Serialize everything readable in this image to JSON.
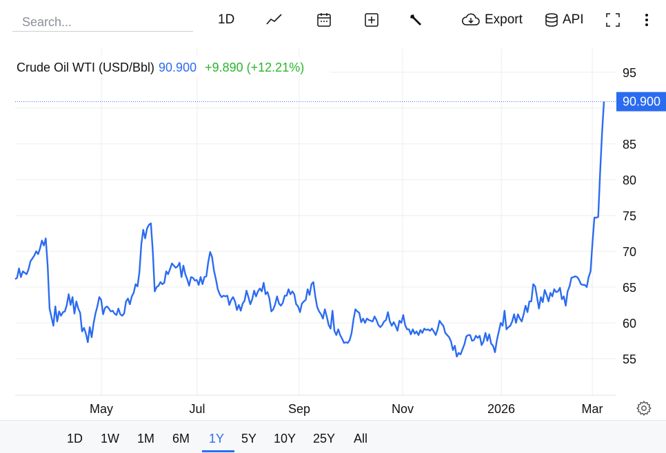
{
  "search": {
    "placeholder": "Search..."
  },
  "toolbar": {
    "interval_label": "1D",
    "export_label": "Export",
    "api_label": "API"
  },
  "chart_data": {
    "type": "line",
    "title": "Crude Oil WTI (USD/Bbl)",
    "last_value": "90.900",
    "change": "+9.890 (+12.21%)",
    "price_tag": "90.900",
    "x_tick_labels": [
      "May",
      "Jul",
      "Sep",
      "Nov",
      "2026",
      "Mar"
    ],
    "y_tick_labels": [
      "55",
      "60",
      "65",
      "70",
      "75",
      "80",
      "85",
      "95"
    ],
    "ylim": [
      50,
      98
    ],
    "grid": true,
    "line_color": "#2b6bf0",
    "series": [
      {
        "values": [
          66.1,
          66.3,
          67.6,
          66.4,
          67.2,
          67.0,
          66.8,
          67.5,
          68.6,
          69.0,
          69.4,
          70.0,
          69.6,
          70.4,
          71.5,
          70.8,
          71.8,
          68.0,
          62.0,
          60.8,
          59.6,
          62.3,
          60.2,
          61.6,
          61.0,
          61.5,
          61.6,
          62.5,
          64.0,
          62.5,
          63.6,
          61.3,
          63.0,
          62.0,
          61.4,
          58.8,
          59.3,
          58.5,
          57.3,
          59.4,
          58.0,
          59.9,
          61.3,
          62.3,
          63.6,
          63.2,
          61.2,
          62.1,
          62.3,
          62.0,
          61.6,
          61.7,
          61.3,
          61.1,
          62.0,
          61.2,
          61.0,
          61.3,
          63.0,
          63.4,
          62.6,
          63.7,
          64.2,
          65.4,
          65.1,
          67.1,
          71.0,
          73.0,
          71.8,
          73.2,
          73.7,
          73.9,
          70.0,
          64.4,
          65.0,
          65.2,
          65.7,
          65.4,
          65.6,
          67.2,
          66.8,
          67.5,
          68.3,
          68.0,
          67.7,
          67.9,
          68.4,
          66.4,
          68.0,
          66.8,
          66.1,
          65.2,
          66.4,
          66.3,
          65.9,
          66.0,
          65.3,
          66.4,
          65.4,
          66.4,
          66.5,
          68.5,
          69.9,
          69.2,
          67.3,
          66.1,
          64.7,
          64.0,
          63.6,
          63.8,
          63.7,
          63.8,
          62.5,
          63.2,
          63.6,
          63.0,
          61.8,
          62.5,
          61.7,
          62.7,
          63.1,
          64.5,
          63.6,
          62.6,
          63.3,
          64.5,
          63.7,
          64.4,
          64.8,
          64.4,
          65.6,
          64.0,
          64.3,
          63.4,
          61.6,
          61.9,
          62.6,
          63.7,
          62.7,
          62.4,
          62.8,
          63.8,
          63.8,
          64.7,
          64.0,
          64.4,
          64.0,
          62.6,
          62.3,
          61.5,
          62.7,
          63.0,
          63.2,
          64.7,
          63.9,
          65.4,
          65.7,
          63.7,
          62.2,
          61.6,
          61.2,
          60.6,
          61.9,
          60.9,
          59.7,
          59.2,
          61.7,
          58.9,
          58.3,
          59.1,
          58.3,
          57.8,
          57.2,
          57.3,
          57.2,
          57.6,
          58.6,
          60.5,
          61.9,
          61.6,
          61.4,
          60.1,
          60.6,
          60.0,
          60.6,
          60.4,
          60.3,
          60.2,
          60.9,
          60.4,
          59.7,
          59.4,
          59.7,
          60.2,
          60.4,
          61.5,
          60.2,
          59.6,
          60.1,
          59.6,
          58.9,
          60.3,
          60.0,
          61.1,
          59.7,
          59.1,
          59.1,
          58.4,
          59.1,
          58.5,
          58.8,
          58.3,
          59.0,
          58.6,
          59.2,
          59.0,
          59.1,
          58.9,
          59.2,
          58.8,
          58.3,
          59.1,
          60.3,
          59.9,
          59.6,
          58.6,
          58.3,
          58.0,
          57.4,
          56.2,
          56.8,
          55.3,
          55.8,
          55.6,
          56.3,
          57.0,
          58.1,
          58.3,
          58.3,
          57.5,
          57.6,
          58.2,
          57.9,
          58.2,
          56.9,
          57.4,
          58.6,
          57.5,
          58.4,
          57.1,
          56.8,
          55.9,
          57.6,
          58.8,
          60.0,
          59.6,
          61.7,
          59.1,
          59.4,
          59.6,
          60.2,
          61.2,
          60.0,
          61.2,
          60.6,
          60.2,
          61.2,
          62.4,
          61.5,
          63.0,
          63.0,
          65.4,
          65.1,
          63.6,
          62.0,
          63.6,
          62.9,
          64.6,
          63.9,
          63.0,
          64.2,
          63.7,
          64.7,
          64.3,
          64.4,
          64.9,
          63.3,
          63.7,
          62.4,
          64.4,
          65.1,
          66.3,
          66.4,
          66.5,
          66.4,
          66.0,
          65.4,
          65.3,
          65.3,
          65.0,
          66.4,
          67.2,
          71.2,
          74.7,
          74.7,
          74.8,
          81.0,
          86.5,
          90.9
        ]
      }
    ]
  },
  "range_buttons": [
    "1D",
    "1W",
    "1M",
    "6M",
    "1Y",
    "5Y",
    "10Y",
    "25Y",
    "All"
  ],
  "active_range": "1Y"
}
